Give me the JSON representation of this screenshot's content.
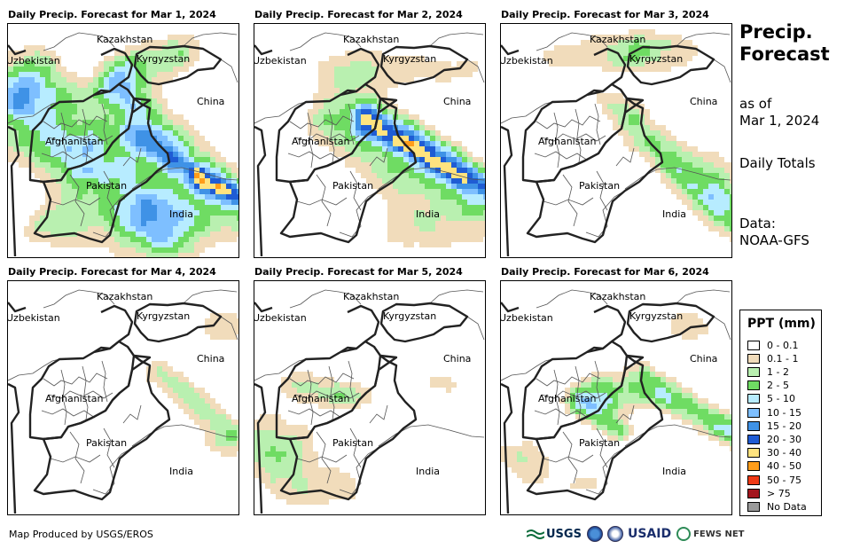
{
  "colors": {
    "p01": "#f1dcbb",
    "p12": "#b9f0b0",
    "p25": "#6fdc63",
    "p510": "#b7ecff",
    "p1015": "#7ebfff",
    "p1520": "#3f92e6",
    "p2030": "#1f5cd4",
    "p3040": "#ffe37f",
    "p4050": "#ff9d1a",
    "p5075": "#ef3a16",
    "p75": "#a3161d",
    "nodata": "#9a9a9a",
    "border": "#222222"
  },
  "panels": [
    {
      "title": "Daily Precip. Forecast for Mar 1, 2024",
      "labels": [
        "Kazakhstan",
        "Uzbekistan",
        "Kyrgyzstan",
        "China",
        "Afghanistan",
        "Pakistan",
        "India"
      ]
    },
    {
      "title": "Daily Precip. Forecast for Mar 2, 2024",
      "labels": [
        "Kazakhstan",
        "Uzbekistan",
        "Kyrgyzstan",
        "China",
        "Afghanistan",
        "Pakistan",
        "India"
      ]
    },
    {
      "title": "Daily Precip. Forecast for Mar 3, 2024",
      "labels": [
        "Kazakhstan",
        "Uzbekistan",
        "Kyrgyzstan",
        "China",
        "Afghanistan",
        "Pakistan",
        "India"
      ]
    },
    {
      "title": "Daily Precip. Forecast for Mar 4, 2024",
      "labels": [
        "Kazakhstan",
        "Uzbekistan",
        "Kyrgyzstan",
        "China",
        "Afghanistan",
        "Pakistan",
        "India"
      ]
    },
    {
      "title": "Daily Precip. Forecast for Mar 5, 2024",
      "labels": [
        "Kazakhstan",
        "Uzbekistan",
        "Kyrgyzstan",
        "China",
        "Afghanistan",
        "Pakistan",
        "India"
      ]
    },
    {
      "title": "Daily Precip. Forecast for Mar 6, 2024",
      "labels": [
        "Kazakhstan",
        "Uzbekistan",
        "Kyrgyzstan",
        "China",
        "Afghanistan",
        "Pakistan",
        "India"
      ]
    }
  ],
  "side": {
    "title_line1": "Precip.",
    "title_line2": "Forecast",
    "asof_line1": "as of",
    "asof_line2": "Mar 1, 2024",
    "totals": "Daily Totals",
    "data_line1": "Data:",
    "data_line2": "NOAA-GFS"
  },
  "legend": {
    "title": "PPT (mm)",
    "items": [
      {
        "label": "0 - 0.1",
        "color": "#ffffff"
      },
      {
        "label": "0.1 - 1",
        "color": "#f1dcbb"
      },
      {
        "label": "1 - 2",
        "color": "#b9f0b0"
      },
      {
        "label": "2 - 5",
        "color": "#6fdc63"
      },
      {
        "label": "5 - 10",
        "color": "#b7ecff"
      },
      {
        "label": "10 - 15",
        "color": "#7ebfff"
      },
      {
        "label": "15 - 20",
        "color": "#3f92e6"
      },
      {
        "label": "20 - 30",
        "color": "#1f5cd4"
      },
      {
        "label": "30 - 40",
        "color": "#ffe37f"
      },
      {
        "label": "40 - 50",
        "color": "#ff9d1a"
      },
      {
        "label": "50 - 75",
        "color": "#ef3a16"
      },
      {
        "label": "> 75",
        "color": "#a3161d"
      },
      {
        "label": "No Data",
        "color": "#9a9a9a"
      }
    ]
  },
  "footer": {
    "credit": "Map Produced by USGS/EROS"
  },
  "logos": {
    "usgs": "USGS",
    "usaid": "USAID",
    "fews": "FEWS NET"
  }
}
